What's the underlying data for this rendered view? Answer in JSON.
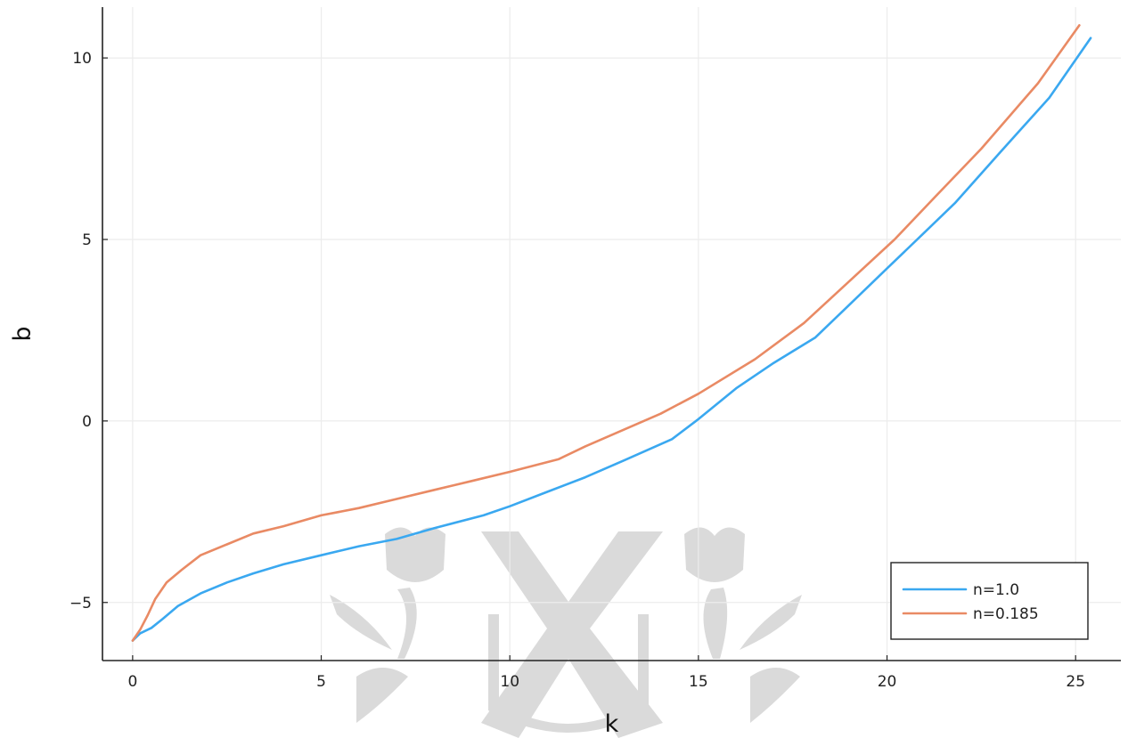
{
  "chart_data": {
    "type": "line",
    "title": "",
    "xlabel": "k",
    "ylabel": "b",
    "xlim": [
      -0.8,
      26.2
    ],
    "ylim": [
      -6.6,
      11.4
    ],
    "xticks": [
      0,
      5,
      10,
      15,
      20,
      25
    ],
    "yticks": [
      -5,
      0,
      5,
      10
    ],
    "xtick_labels": [
      "0",
      "5",
      "10",
      "15",
      "20",
      "25"
    ],
    "ytick_labels": [
      "−5",
      "0",
      "5",
      "10"
    ],
    "grid": true,
    "legend_position": "bottom-right",
    "series": [
      {
        "name": "n=1.0",
        "color": "#3aa8f0",
        "x": [
          0,
          0.2,
          0.5,
          0.8,
          1.2,
          1.8,
          2.5,
          3.2,
          4.0,
          5.0,
          6.0,
          7.0,
          8.0,
          9.3,
          10.0,
          11.0,
          12.0,
          13.0,
          14.3,
          15.0,
          16.0,
          17.0,
          18.1,
          19.0,
          20.0,
          21.0,
          21.8,
          23.0,
          24.3,
          25.4
        ],
        "y": [
          -6.05,
          -5.85,
          -5.7,
          -5.45,
          -5.1,
          -4.75,
          -4.45,
          -4.2,
          -3.95,
          -3.7,
          -3.45,
          -3.25,
          -2.95,
          -2.6,
          -2.35,
          -1.95,
          -1.55,
          -1.1,
          -0.5,
          0.05,
          0.9,
          1.6,
          2.3,
          3.2,
          4.2,
          5.2,
          6.0,
          7.4,
          8.9,
          10.55
        ]
      },
      {
        "name": "n=0.185",
        "color": "#e98a64",
        "x": [
          0,
          0.2,
          0.4,
          0.6,
          0.9,
          1.3,
          1.8,
          2.5,
          3.2,
          4.0,
          5.0,
          6.0,
          7.0,
          8.0,
          9.0,
          10.0,
          11.3,
          12.0,
          13.0,
          14.0,
          15.0,
          16.5,
          17.8,
          19.0,
          20.2,
          21.3,
          22.5,
          24.0,
          25.1
        ],
        "y": [
          -6.05,
          -5.75,
          -5.35,
          -4.9,
          -4.45,
          -4.1,
          -3.7,
          -3.4,
          -3.1,
          -2.9,
          -2.6,
          -2.4,
          -2.15,
          -1.9,
          -1.65,
          -1.4,
          -1.05,
          -0.7,
          -0.25,
          0.2,
          0.75,
          1.7,
          2.7,
          3.85,
          5.0,
          6.2,
          7.5,
          9.3,
          10.9
        ]
      }
    ]
  }
}
